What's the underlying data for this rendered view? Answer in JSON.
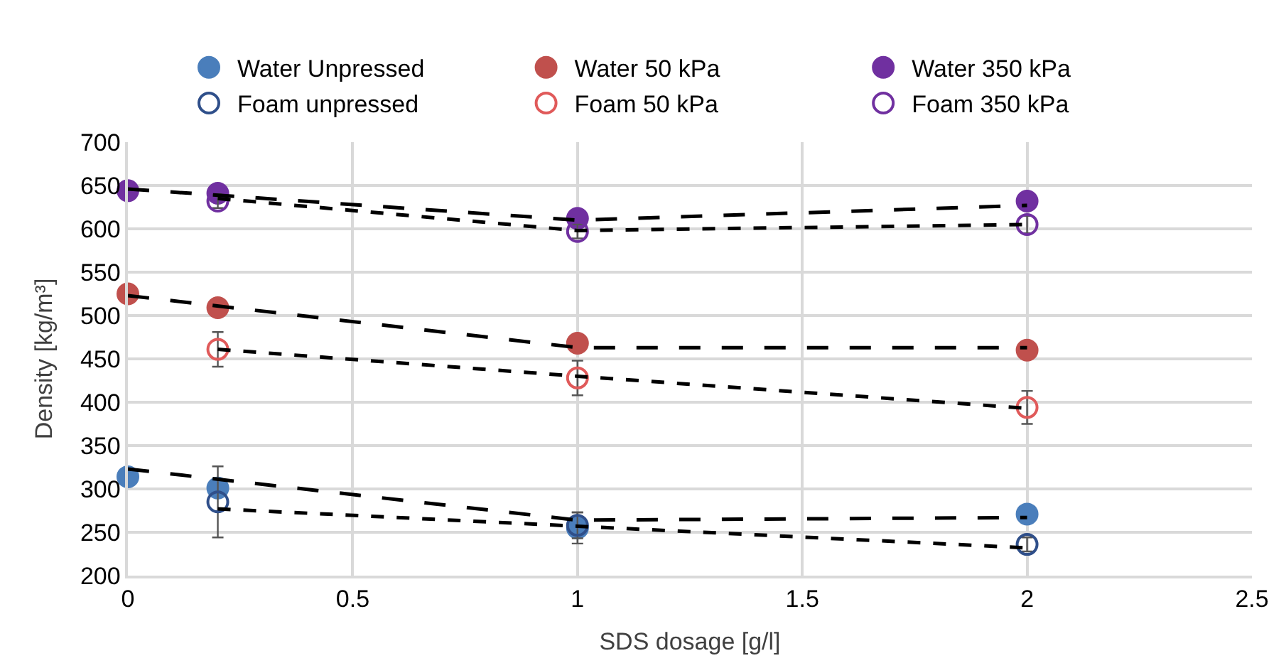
{
  "chart_data": {
    "type": "scatter",
    "xlabel": "SDS dosage [g/l]",
    "ylabel": "Density [kg/m³]",
    "xlim": [
      0,
      2.5
    ],
    "xticks": [
      0,
      0.5,
      1,
      1.5,
      2,
      2.5
    ],
    "ylim": [
      200,
      700
    ],
    "yticks": [
      200,
      250,
      300,
      350,
      400,
      450,
      500,
      550,
      600,
      650,
      700
    ],
    "grid": true,
    "legend": "top",
    "series": [
      {
        "name": "Water Unpressed",
        "color": "#4a7ebb",
        "marker": "circle",
        "x": [
          0,
          0.2,
          1,
          2
        ],
        "values": [
          314,
          301,
          255,
          271
        ],
        "errors": [
          null,
          null,
          18,
          null
        ]
      },
      {
        "name": "Water 50 kPa",
        "color": "#c0504d",
        "marker": "circle",
        "x": [
          0,
          0.2,
          1,
          2
        ],
        "values": [
          525,
          509,
          468,
          460
        ]
      },
      {
        "name": "Water 350 kPa",
        "color": "#7030a0",
        "marker": "circle",
        "x": [
          0,
          0.2,
          1,
          2
        ],
        "values": [
          644,
          641,
          612,
          632
        ]
      },
      {
        "name": "Foam unpressed",
        "color": "#2f4f8a",
        "marker": "circle-open",
        "x": [
          0.2,
          1,
          2
        ],
        "values": [
          285,
          258,
          236
        ],
        "errors": [
          41,
          15,
          8
        ]
      },
      {
        "name": "Foam 50 kPa",
        "color": "#e05a5a",
        "marker": "circle-open",
        "x": [
          0.2,
          1,
          2
        ],
        "values": [
          461,
          428,
          394
        ],
        "errors": [
          20,
          20,
          19
        ]
      },
      {
        "name": "Foam 350 kPa",
        "color": "#7030a0",
        "marker": "circle-open",
        "x": [
          0.2,
          1,
          2
        ],
        "values": [
          632,
          597,
          605
        ],
        "errors": [
          8,
          8,
          10
        ]
      },
      {
        "type": "line",
        "color": "#000000",
        "line_style": "dashed",
        "x": [
          0,
          1,
          2
        ],
        "values": [
          323,
          264,
          267
        ]
      },
      {
        "type": "line",
        "color": "#000000",
        "line_style": "dashed",
        "x": [
          0,
          1,
          2
        ],
        "values": [
          523,
          463,
          463
        ]
      },
      {
        "type": "line",
        "color": "#000000",
        "line_style": "dashed",
        "x": [
          0,
          1,
          2
        ],
        "values": [
          646,
          610,
          627
        ]
      },
      {
        "type": "line",
        "color": "#000000",
        "line_style": "dotted",
        "x": [
          0.2,
          1,
          2
        ],
        "values": [
          277,
          257,
          232
        ]
      },
      {
        "type": "line",
        "color": "#000000",
        "line_style": "dotted",
        "x": [
          0.2,
          1,
          2
        ],
        "values": [
          461,
          430,
          393
        ]
      },
      {
        "type": "line",
        "color": "#000000",
        "line_style": "dotted",
        "x": [
          0.2,
          1,
          2
        ],
        "values": [
          635,
          598,
          605
        ]
      }
    ]
  }
}
